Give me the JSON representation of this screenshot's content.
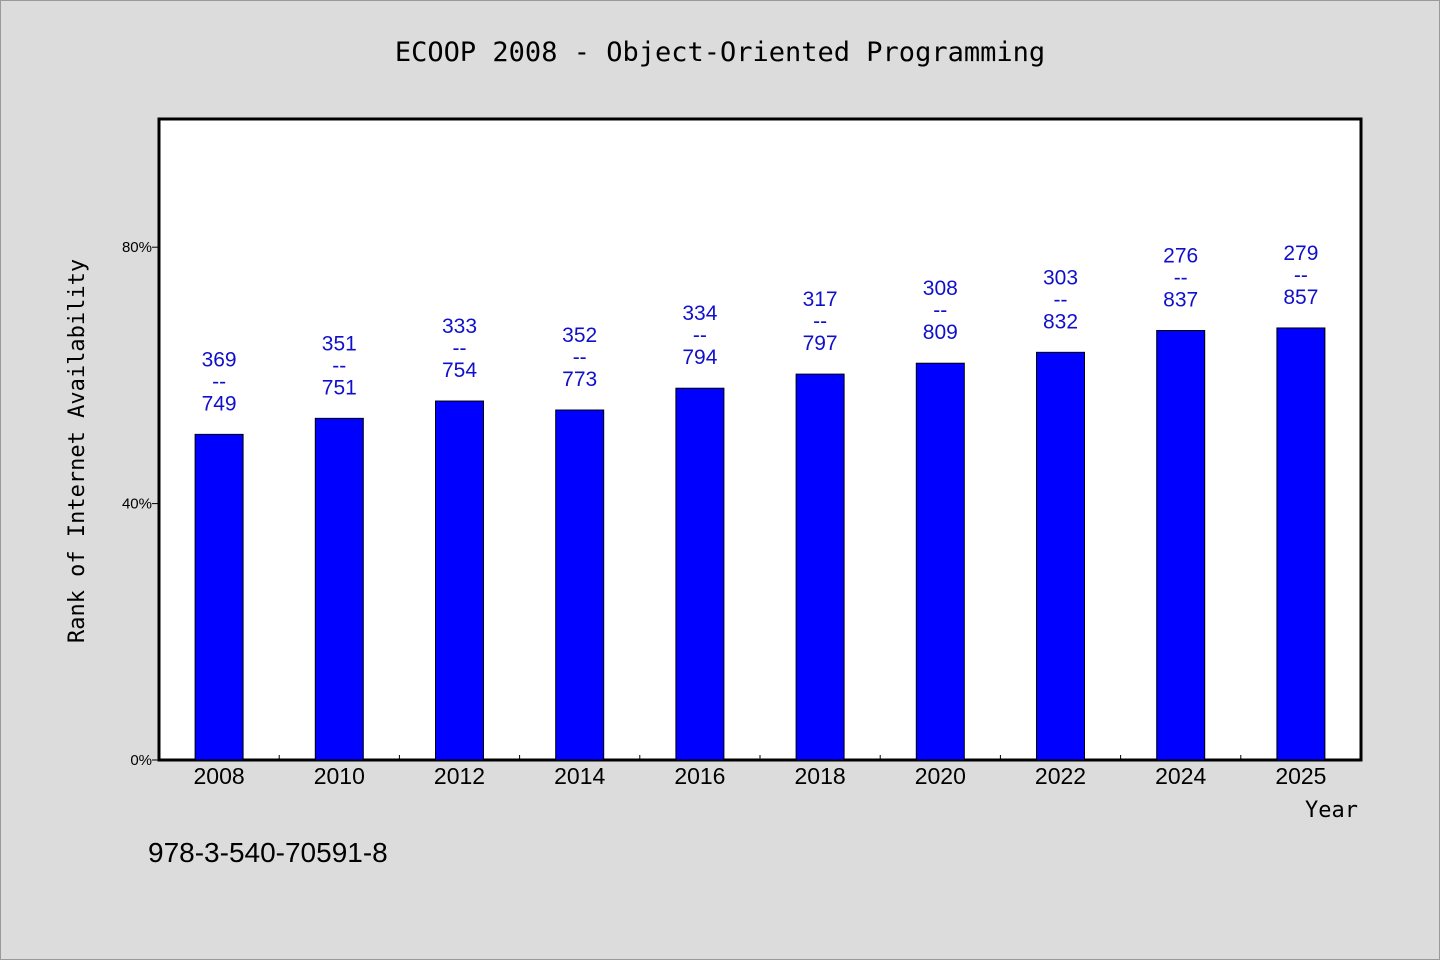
{
  "footnote": "978-3-540-70591-8",
  "colors": {
    "bar": "#0000ff",
    "label": "#1010cc",
    "background": "#dcdcdc",
    "plot": "#ffffff"
  },
  "chart_data": {
    "type": "bar",
    "title": "ECOOP 2008 - Object-Oriented Programming",
    "xlabel": "Year",
    "ylabel": "Rank of Internet Availability",
    "ylim": [
      0,
      100
    ],
    "yticks": [
      0,
      40,
      80
    ],
    "ytick_labels": [
      "0%",
      "40%",
      "80%"
    ],
    "grid": false,
    "categories": [
      "2008",
      "2010",
      "2012",
      "2014",
      "2016",
      "2018",
      "2020",
      "2022",
      "2024",
      "2025"
    ],
    "values": [
      50.8,
      53.3,
      56.0,
      54.6,
      58.0,
      60.2,
      61.9,
      63.6,
      67.0,
      67.4
    ],
    "data_labels": [
      [
        "369",
        "--",
        "749"
      ],
      [
        "351",
        "--",
        "751"
      ],
      [
        "333",
        "--",
        "754"
      ],
      [
        "352",
        "--",
        "773"
      ],
      [
        "334",
        "--",
        "794"
      ],
      [
        "317",
        "--",
        "797"
      ],
      [
        "308",
        "--",
        "809"
      ],
      [
        "303",
        "--",
        "832"
      ],
      [
        "276",
        "--",
        "837"
      ],
      [
        "279",
        "--",
        "857"
      ]
    ]
  }
}
